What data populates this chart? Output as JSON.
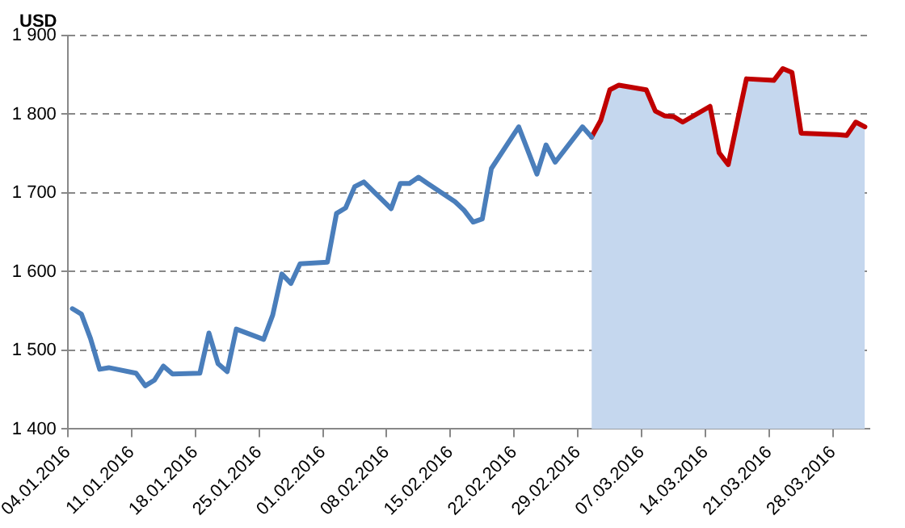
{
  "chart_data": {
    "type": "line",
    "ylabel": "USD",
    "x": [
      "2016-01-04T12:00",
      "2016-01-05T12:00",
      "2016-01-06T12:00",
      "2016-01-07T12:00",
      "2016-01-08T12:00",
      "2016-01-11T12:00",
      "2016-01-12T12:00",
      "2016-01-13T12:00",
      "2016-01-14T12:00",
      "2016-01-15T12:00",
      "2016-01-18T12:00",
      "2016-01-19T12:00",
      "2016-01-20T12:00",
      "2016-01-21T12:00",
      "2016-01-22T12:00",
      "2016-01-25T12:00",
      "2016-01-26T12:00",
      "2016-01-27T12:00",
      "2016-01-28T12:00",
      "2016-01-29T12:00",
      "2016-02-01T12:00",
      "2016-02-02T12:00",
      "2016-02-03T12:00",
      "2016-02-04T12:00",
      "2016-02-05T12:00",
      "2016-02-08T12:00",
      "2016-02-09T12:00",
      "2016-02-10T12:00",
      "2016-02-11T12:00",
      "2016-02-12T12:00",
      "2016-02-15T12:00",
      "2016-02-16T12:00",
      "2016-02-17T12:00",
      "2016-02-18T12:00",
      "2016-02-19T12:00",
      "2016-02-22T12:00",
      "2016-02-24T12:00",
      "2016-02-25T12:00",
      "2016-02-26T12:00",
      "2016-02-29T12:00",
      "2016-03-01T12:00",
      "2016-03-02T12:00",
      "2016-03-03T12:00",
      "2016-03-04T12:00",
      "2016-03-07T12:00",
      "2016-03-08T12:00",
      "2016-03-09T12:00",
      "2016-03-10T12:00",
      "2016-03-11T12:00",
      "2016-03-14T12:00",
      "2016-03-15T12:00",
      "2016-03-16T12:00",
      "2016-03-17T12:00",
      "2016-03-18T12:00",
      "2016-03-21T12:00",
      "2016-03-22T12:00",
      "2016-03-23T12:00",
      "2016-03-24T12:00",
      "2016-03-28T12:00",
      "2016-03-29T12:00",
      "2016-03-30T12:00",
      "2016-03-31T12:00"
    ],
    "series": [
      {
        "color": "#4a7ebb",
        "values": [
          1553,
          1546,
          1515,
          1476,
          1478,
          1471,
          1455,
          1462,
          1480,
          1470,
          1471,
          1522,
          1483,
          1473,
          1527,
          1514,
          1545,
          1597,
          1585,
          1610,
          1612,
          1674,
          1681,
          1708,
          1714,
          1680,
          1712,
          1712,
          1720,
          1712,
          1689,
          1678,
          1663,
          1667,
          1731,
          1784,
          1724,
          1761,
          1739,
          1784,
          1771,
          null,
          null,
          null,
          null,
          null,
          null,
          null,
          null,
          null,
          null,
          null,
          null,
          null,
          null,
          null,
          null,
          null,
          null,
          null,
          null,
          null
        ]
      },
      {
        "type": "area",
        "color": "#c5d7ee",
        "values": [
          null,
          null,
          null,
          null,
          null,
          null,
          null,
          null,
          null,
          null,
          null,
          null,
          null,
          null,
          null,
          null,
          null,
          null,
          null,
          null,
          null,
          null,
          null,
          null,
          null,
          null,
          null,
          null,
          null,
          null,
          null,
          null,
          null,
          null,
          null,
          null,
          null,
          null,
          null,
          null,
          1771,
          1792,
          1831,
          1837,
          1831,
          1804,
          1798,
          1797,
          1790,
          1810,
          1751,
          1736,
          1791,
          1845,
          1843,
          1858,
          1853,
          1776,
          1774,
          1773,
          1790,
          1784
        ]
      },
      {
        "color": "#c00000",
        "values": [
          null,
          null,
          null,
          null,
          null,
          null,
          null,
          null,
          null,
          null,
          null,
          null,
          null,
          null,
          null,
          null,
          null,
          null,
          null,
          null,
          null,
          null,
          null,
          null,
          null,
          null,
          null,
          null,
          null,
          null,
          null,
          null,
          null,
          null,
          null,
          null,
          null,
          null,
          null,
          null,
          1771,
          1792,
          1831,
          1837,
          1831,
          1804,
          1798,
          1797,
          1790,
          1810,
          1751,
          1736,
          1791,
          1845,
          1843,
          1858,
          1853,
          1776,
          1774,
          1773,
          1790,
          1784
        ]
      }
    ],
    "xlim": [
      "2016-01-04",
      "2016-04-01"
    ],
    "xticks": [
      {
        "value": "2016-01-04",
        "label": "04.01.2016"
      },
      {
        "value": "2016-01-11",
        "label": "11.01.2016"
      },
      {
        "value": "2016-01-18",
        "label": "18.01.2016"
      },
      {
        "value": "2016-01-25",
        "label": "25.01.2016"
      },
      {
        "value": "2016-02-01",
        "label": "01.02.2016"
      },
      {
        "value": "2016-02-08",
        "label": "08.02.2016"
      },
      {
        "value": "2016-02-15",
        "label": "15.02.2016"
      },
      {
        "value": "2016-02-22",
        "label": "22.02.2016"
      },
      {
        "value": "2016-02-29",
        "label": "29.02.2016"
      },
      {
        "value": "2016-03-07",
        "label": "07.03.2016"
      },
      {
        "value": "2016-03-14",
        "label": "14.03.2016"
      },
      {
        "value": "2016-03-21",
        "label": "21.03.2016"
      },
      {
        "value": "2016-03-28",
        "label": "28.03.2016"
      }
    ],
    "ylim": [
      1400,
      1900
    ],
    "yticks": [
      {
        "value": 1400,
        "label": "1 400"
      },
      {
        "value": 1500,
        "label": "1 500"
      },
      {
        "value": 1600,
        "label": "1 600"
      },
      {
        "value": 1700,
        "label": "1 700"
      },
      {
        "value": 1800,
        "label": "1 800"
      },
      {
        "value": 1900,
        "label": "1 900"
      }
    ],
    "grid": "y",
    "legend": false,
    "marker": "none",
    "line_style": "solid"
  }
}
